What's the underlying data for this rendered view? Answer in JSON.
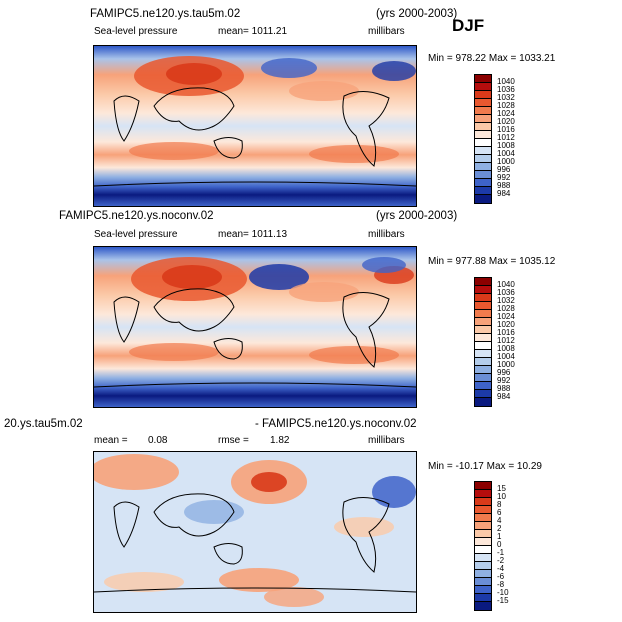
{
  "season": "DJF",
  "panels": [
    {
      "case": "FAMIPC5.ne120.ys.tau5m.02",
      "years": "(yrs 2000-2003)",
      "variable": "Sea-level pressure",
      "stat1": "mean=  1011.21",
      "units": "millibars",
      "minmax": "Min = 978.22  Max = 1033.21",
      "colorbar": {
        "labels": [
          "1040",
          "1036",
          "1032",
          "1028",
          "1024",
          "1020",
          "1016",
          "1012",
          "1008",
          "1004",
          "1000",
          "996",
          "992",
          "988",
          "984"
        ],
        "colors": [
          "#8b0000",
          "#b50d0d",
          "#d93a1a",
          "#e9582f",
          "#f17b4d",
          "#f7a27a",
          "#fbc9a8",
          "#fde8da",
          "#ffffff",
          "#d6e4f5",
          "#b4cdeb",
          "#8fb0e2",
          "#6a8ed6",
          "#3e63c9",
          "#1c3aa8",
          "#0a1a80"
        ]
      }
    },
    {
      "case": "FAMIPC5.ne120.ys.noconv.02",
      "years": "(yrs 2000-2003)",
      "variable": "Sea-level pressure",
      "stat1": "mean=  1011.13",
      "units": "millibars",
      "minmax": "Min = 977.88  Max = 1035.12",
      "colorbar": {
        "labels": [
          "1040",
          "1036",
          "1032",
          "1028",
          "1024",
          "1020",
          "1016",
          "1012",
          "1008",
          "1004",
          "1000",
          "996",
          "992",
          "988",
          "984"
        ],
        "colors": [
          "#8b0000",
          "#b50d0d",
          "#d93a1a",
          "#e9582f",
          "#f17b4d",
          "#f7a27a",
          "#fbc9a8",
          "#fde8da",
          "#ffffff",
          "#d6e4f5",
          "#b4cdeb",
          "#8fb0e2",
          "#6a8ed6",
          "#3e63c9",
          "#1c3aa8",
          "#0a1a80"
        ]
      }
    },
    {
      "case_left": "20.ys.tau5m.02",
      "case_right": "- FAMIPC5.ne120.ys.noconv.02",
      "stat_mean_label": "mean =",
      "stat_mean_value": "0.08",
      "stat_rmse_label": "rmse =",
      "stat_rmse_value": "1.82",
      "units": "millibars",
      "minmax": "Min = -10.17  Max =  10.29",
      "colorbar": {
        "labels": [
          "15",
          "10",
          "8",
          "6",
          "4",
          "2",
          "1",
          "0",
          "-1",
          "-2",
          "-4",
          "-6",
          "-8",
          "-10",
          "-15"
        ],
        "colors": [
          "#8b0000",
          "#b50d0d",
          "#d93a1a",
          "#e9582f",
          "#f17b4d",
          "#f7a27a",
          "#fbc9a8",
          "#fde8da",
          "#ffffff",
          "#d6e4f5",
          "#b4cdeb",
          "#8fb0e2",
          "#6a8ed6",
          "#3e63c9",
          "#1c3aa8",
          "#0a1a80"
        ]
      }
    }
  ]
}
